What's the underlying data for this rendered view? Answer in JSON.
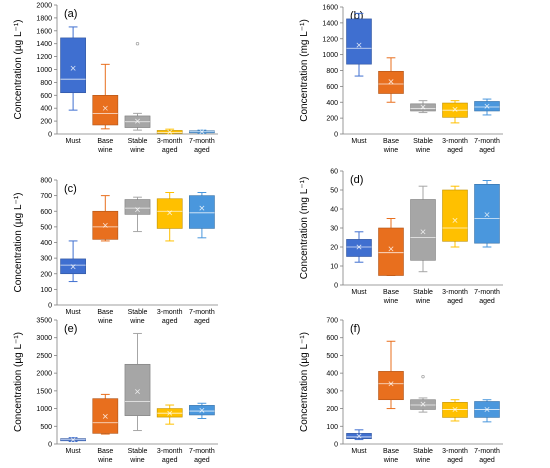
{
  "palette": {
    "blue": "#3F6FD0",
    "orange": "#E86F1E",
    "gray": "#A6A6A6",
    "gold": "#FFC000",
    "lightblue": "#4A97DD"
  },
  "chart_data": [
    {
      "type": "box",
      "panel_label": "(a)",
      "ylabel": "Concentration (µg L⁻¹)",
      "ylim": [
        0,
        2000
      ],
      "yticks": [
        0,
        200,
        400,
        600,
        800,
        1000,
        1200,
        1400,
        1600,
        1800,
        2000
      ],
      "categories": [
        [
          "Must"
        ],
        [
          "Base",
          "wine"
        ],
        [
          "Stable",
          "wine"
        ],
        [
          "3-month",
          "aged"
        ],
        [
          "7-month",
          "aged"
        ]
      ],
      "boxes": [
        {
          "min": 370,
          "q1": 640,
          "median": 850,
          "q3": 1490,
          "max": 1660,
          "mean": 1020,
          "outliers": []
        },
        {
          "min": 80,
          "q1": 140,
          "median": 320,
          "q3": 600,
          "max": 1080,
          "mean": 400,
          "outliers": []
        },
        {
          "min": 60,
          "q1": 100,
          "median": 190,
          "q3": 280,
          "max": 320,
          "mean": 200,
          "outliers": [
            1400
          ]
        },
        {
          "min": 5,
          "q1": 10,
          "median": 25,
          "q3": 55,
          "max": 75,
          "mean": 30,
          "outliers": []
        },
        {
          "min": 10,
          "q1": 18,
          "median": 35,
          "q3": 50,
          "max": 60,
          "mean": 35,
          "outliers": []
        }
      ]
    },
    {
      "type": "box",
      "panel_label": "(b)",
      "ylabel": "Concentration (mg L⁻¹)",
      "ylim": [
        0,
        1600
      ],
      "yticks": [
        0,
        200,
        400,
        600,
        800,
        1000,
        1200,
        1400,
        1600
      ],
      "categories": [
        [
          "Must"
        ],
        [
          "Base",
          "wine"
        ],
        [
          "Stable",
          "wine"
        ],
        [
          "3-month",
          "aged"
        ],
        [
          "7-month",
          "aged"
        ]
      ],
      "boxes": [
        {
          "min": 730,
          "q1": 880,
          "median": 1080,
          "q3": 1450,
          "max": 1520,
          "mean": 1120,
          "outliers": []
        },
        {
          "min": 400,
          "q1": 510,
          "median": 630,
          "q3": 790,
          "max": 960,
          "mean": 660,
          "outliers": []
        },
        {
          "min": 270,
          "q1": 290,
          "median": 320,
          "q3": 380,
          "max": 420,
          "mean": 340,
          "outliers": []
        },
        {
          "min": 140,
          "q1": 210,
          "median": 300,
          "q3": 390,
          "max": 420,
          "mean": 310,
          "outliers": []
        },
        {
          "min": 240,
          "q1": 290,
          "median": 340,
          "q3": 410,
          "max": 440,
          "mean": 350,
          "outliers": []
        }
      ]
    },
    {
      "type": "box",
      "panel_label": "(c)",
      "ylabel": "Concentration (µg L⁻¹)",
      "ylim": [
        0,
        800
      ],
      "yticks": [
        0,
        100,
        200,
        300,
        400,
        500,
        600,
        700,
        800
      ],
      "categories": [
        [
          "Must"
        ],
        [
          "Base",
          "wine"
        ],
        [
          "Stable",
          "wine"
        ],
        [
          "3-month",
          "aged"
        ],
        [
          "7-month",
          "aged"
        ]
      ],
      "boxes": [
        {
          "min": 150,
          "q1": 200,
          "median": 255,
          "q3": 295,
          "max": 410,
          "mean": 245,
          "outliers": []
        },
        {
          "min": 410,
          "q1": 420,
          "median": 500,
          "q3": 600,
          "max": 700,
          "mean": 510,
          "outliers": []
        },
        {
          "min": 470,
          "q1": 580,
          "median": 620,
          "q3": 675,
          "max": 690,
          "mean": 610,
          "outliers": []
        },
        {
          "min": 410,
          "q1": 490,
          "median": 600,
          "q3": 680,
          "max": 720,
          "mean": 590,
          "outliers": []
        },
        {
          "min": 430,
          "q1": 490,
          "median": 590,
          "q3": 700,
          "max": 720,
          "mean": 620,
          "outliers": []
        }
      ]
    },
    {
      "type": "box",
      "panel_label": "(d)",
      "ylabel": "Concentration (mg L⁻¹)",
      "ylim": [
        0,
        60
      ],
      "yticks": [
        0,
        10,
        20,
        30,
        40,
        50,
        60
      ],
      "categories": [
        [
          "Must"
        ],
        [
          "Base",
          "wine"
        ],
        [
          "Stable",
          "wine"
        ],
        [
          "3-month",
          "aged"
        ],
        [
          "7-month",
          "aged"
        ]
      ],
      "boxes": [
        {
          "min": 12,
          "q1": 15,
          "median": 20,
          "q3": 24,
          "max": 28,
          "mean": 20,
          "outliers": []
        },
        {
          "min": 5,
          "q1": 5,
          "median": 17,
          "q3": 30,
          "max": 35,
          "mean": 19,
          "outliers": []
        },
        {
          "min": 7,
          "q1": 13,
          "median": 25,
          "q3": 45,
          "max": 52,
          "mean": 28,
          "outliers": []
        },
        {
          "min": 20,
          "q1": 23,
          "median": 30,
          "q3": 50,
          "max": 52,
          "mean": 34,
          "outliers": []
        },
        {
          "min": 20,
          "q1": 22,
          "median": 35,
          "q3": 53,
          "max": 55,
          "mean": 37,
          "outliers": []
        }
      ]
    },
    {
      "type": "box",
      "panel_label": "(e)",
      "ylabel": "Concentration (µg L⁻¹)",
      "ylim": [
        0,
        3500
      ],
      "yticks": [
        0,
        500,
        1000,
        1500,
        2000,
        2500,
        3000,
        3500
      ],
      "categories": [
        [
          "Must"
        ],
        [
          "Base",
          "wine"
        ],
        [
          "Stable",
          "wine"
        ],
        [
          "3-month",
          "aged"
        ],
        [
          "7-month",
          "aged"
        ]
      ],
      "boxes": [
        {
          "min": 70,
          "q1": 90,
          "median": 120,
          "q3": 150,
          "max": 180,
          "mean": 120,
          "outliers": []
        },
        {
          "min": 280,
          "q1": 300,
          "median": 600,
          "q3": 1280,
          "max": 1400,
          "mean": 780,
          "outliers": []
        },
        {
          "min": 380,
          "q1": 800,
          "median": 1200,
          "q3": 2250,
          "max": 3120,
          "mean": 1480,
          "outliers": []
        },
        {
          "min": 560,
          "q1": 760,
          "median": 870,
          "q3": 1000,
          "max": 1100,
          "mean": 870,
          "outliers": []
        },
        {
          "min": 720,
          "q1": 820,
          "median": 930,
          "q3": 1090,
          "max": 1150,
          "mean": 950,
          "outliers": []
        }
      ]
    },
    {
      "type": "box",
      "panel_label": "(f)",
      "ylabel": "Concentration (µg L⁻¹)",
      "ylim": [
        0,
        700
      ],
      "yticks": [
        0,
        100,
        200,
        300,
        400,
        500,
        600,
        700
      ],
      "categories": [
        [
          "Must"
        ],
        [
          "Base",
          "wine"
        ],
        [
          "Stable",
          "wine"
        ],
        [
          "3-month",
          "aged"
        ],
        [
          "7-month",
          "aged"
        ]
      ],
      "boxes": [
        {
          "min": 25,
          "q1": 30,
          "median": 40,
          "q3": 60,
          "max": 80,
          "mean": 45,
          "outliers": []
        },
        {
          "min": 200,
          "q1": 250,
          "median": 340,
          "q3": 410,
          "max": 580,
          "mean": 340,
          "outliers": []
        },
        {
          "min": 180,
          "q1": 195,
          "median": 220,
          "q3": 250,
          "max": 260,
          "mean": 225,
          "outliers": [
            380
          ]
        },
        {
          "min": 130,
          "q1": 150,
          "median": 195,
          "q3": 235,
          "max": 250,
          "mean": 195,
          "outliers": []
        },
        {
          "min": 125,
          "q1": 150,
          "median": 195,
          "q3": 240,
          "max": 250,
          "mean": 195,
          "outliers": []
        }
      ]
    }
  ]
}
